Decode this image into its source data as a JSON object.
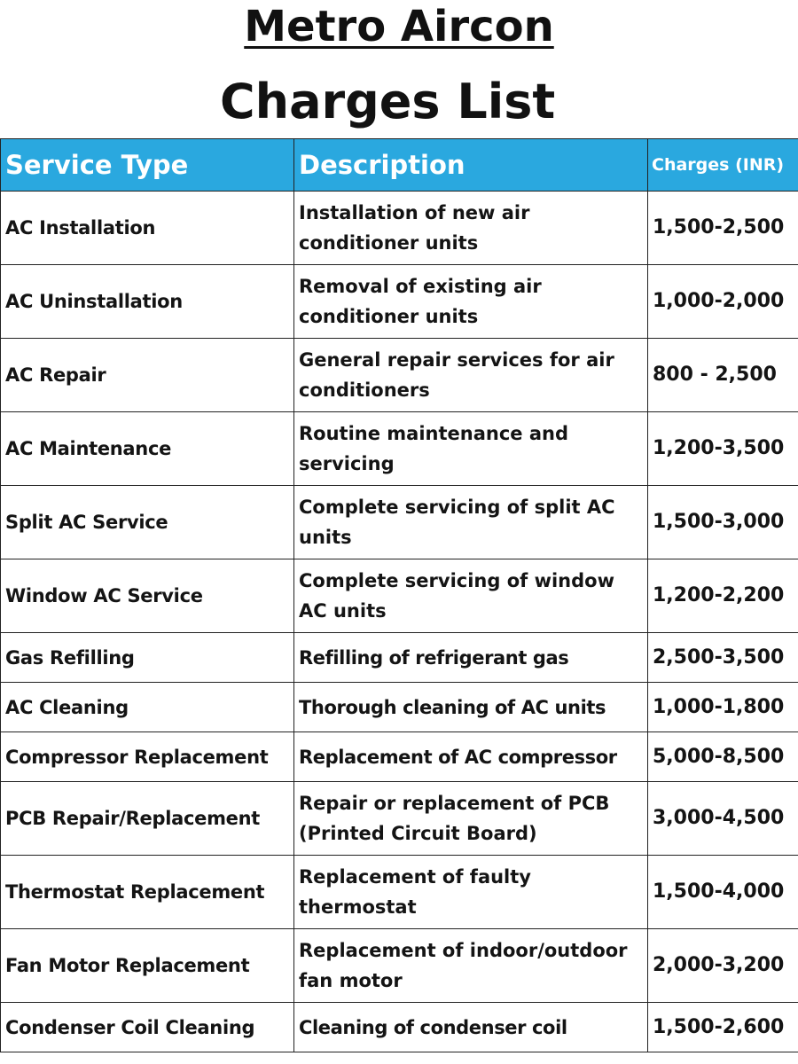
{
  "title": "Metro Aircon",
  "subtitle": "Charges List",
  "table": {
    "headers": [
      "Service Type",
      "Description",
      "Charges (INR)"
    ],
    "rows": [
      {
        "service": "AC Installation",
        "description": "Installation of new air conditioner units",
        "charges": "1,500-2,500"
      },
      {
        "service": "AC Uninstallation",
        "description": "Removal of existing air conditioner units",
        "charges": "1,000-2,000"
      },
      {
        "service": "AC Repair",
        "description": "General repair services for air conditioners",
        "charges": "800 - 2,500"
      },
      {
        "service": "AC Maintenance",
        "description": "Routine maintenance and servicing",
        "charges": "1,200-3,500"
      },
      {
        "service": "Split AC Service",
        "description": "Complete servicing of split AC units",
        "charges": "1,500-3,000"
      },
      {
        "service": "Window AC Service",
        "description": "Complete servicing of window AC units",
        "charges": "1,200-2,200"
      },
      {
        "service": "Gas Refilling",
        "description": "Refilling of refrigerant gas",
        "charges": "2,500-3,500"
      },
      {
        "service": "AC Cleaning",
        "description": "Thorough cleaning of AC units",
        "charges": "1,000-1,800"
      },
      {
        "service": "Compressor Replacement",
        "description": "Replacement of AC compressor",
        "charges": "5,000-8,500"
      },
      {
        "service": "PCB Repair/Replacement",
        "description": "Repair or replacement of PCB (Printed Circuit Board)",
        "charges": "3,000-4,500"
      },
      {
        "service": "Thermostat Replacement",
        "description": "Replacement of faulty thermostat",
        "charges": "1,500-4,000"
      },
      {
        "service": "Fan Motor Replacement",
        "description": "Replacement of indoor/outdoor fan motor",
        "charges": "2,000-3,200"
      },
      {
        "service": "Condenser Coil Cleaning",
        "description": "Cleaning of condenser coil",
        "charges": "1,500-2,600"
      }
    ]
  },
  "colors": {
    "header_background": "#2aa8df",
    "header_text": "#ffffff",
    "text": "#111111"
  }
}
